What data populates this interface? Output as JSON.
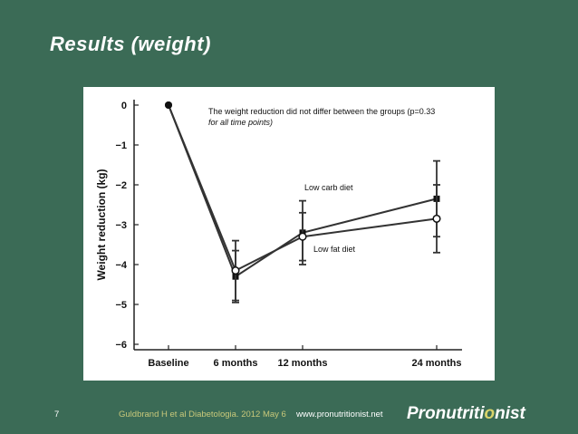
{
  "slide": {
    "title": "Results (weight)",
    "number": "7",
    "citation": "Guldbrand H et al Diabetologia. 2012 May 6",
    "website": "www.pronutritionist.net",
    "logo": {
      "part1": "Pronutriti",
      "accent": "o",
      "part2": "nist"
    }
  },
  "chart_data": {
    "type": "line",
    "title": "",
    "annotation_line1": "The weight reduction did not differ between the groups (p=0.33",
    "annotation_line2": "for all time points)",
    "xlabel": "",
    "ylabel": "Weight reduction (kg)",
    "categories": [
      "Baseline",
      "6 months",
      "12 months",
      "24 months"
    ],
    "yticks": [
      0,
      -1,
      -2,
      -3,
      -4,
      -5,
      -6
    ],
    "ylim": [
      -6,
      0
    ],
    "grid": false,
    "series": [
      {
        "name": "Low carb diet",
        "marker": "filled-square",
        "values": [
          0,
          -4.3,
          -3.2,
          -2.35
        ],
        "error": [
          0,
          0.65,
          0.8,
          0.95
        ]
      },
      {
        "name": "Low fat diet",
        "marker": "open-circle",
        "values": [
          0,
          -4.15,
          -3.3,
          -2.85
        ],
        "error": [
          0,
          0.75,
          0.6,
          0.85
        ]
      }
    ],
    "colors": {
      "line": "#333333",
      "axis": "#222222"
    }
  }
}
